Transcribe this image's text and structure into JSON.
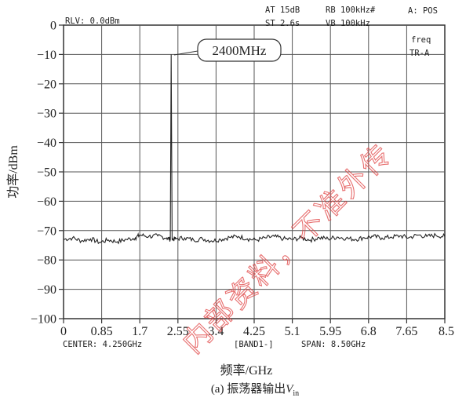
{
  "chart_data": {
    "type": "line",
    "ylabel": "功率/dBm",
    "xlabel": "频率/GHz",
    "caption_prefix": "(a) 振荡器输出",
    "caption_var": "V",
    "caption_sub": "in",
    "yticks": [
      "0",
      "−10",
      "−20",
      "−30",
      "−40",
      "−50",
      "−60",
      "−70",
      "−80",
      "−90",
      "−100"
    ],
    "xticks": [
      "0",
      "0.85",
      "1.7",
      "2.55",
      "3.4",
      "4.25",
      "5.1",
      "5.95",
      "6.8",
      "7.65",
      "8.5"
    ],
    "ylim": [
      -100,
      0
    ],
    "xlim": [
      0,
      8.5
    ],
    "grid": true,
    "peak_annotation": "2400MHz",
    "series": [
      {
        "x": [
          0,
          0.2,
          0.4,
          0.6,
          0.8,
          1.0,
          1.2,
          1.4,
          1.6,
          1.7,
          1.9,
          2.1,
          2.3,
          2.38,
          2.4,
          2.42,
          2.5,
          2.7,
          2.9,
          3.1,
          3.3,
          3.5,
          3.7,
          3.9,
          4.1,
          4.3,
          4.5,
          4.7,
          4.9,
          5.1,
          5.3,
          5.5,
          5.7,
          5.9,
          6.1,
          6.3,
          6.5,
          6.7,
          6.9,
          7.1,
          7.3,
          7.5,
          7.7,
          7.9,
          8.1,
          8.3,
          8.5
        ],
        "y": [
          -73,
          -72.5,
          -73.5,
          -72.8,
          -74,
          -73.2,
          -73.8,
          -73,
          -72.5,
          -71.5,
          -72,
          -71.8,
          -72.5,
          -73,
          -10,
          -73,
          -72.8,
          -72.5,
          -73.2,
          -72.8,
          -73.5,
          -73,
          -72.3,
          -72,
          -72.8,
          -73.2,
          -72.5,
          -72,
          -72.8,
          -73,
          -72.5,
          -73.2,
          -72.4,
          -72.8,
          -72.2,
          -72.6,
          -73,
          -72.4,
          -72,
          -72.5,
          -72.2,
          -71.8,
          -72.4,
          -71.5,
          -72,
          -71.6,
          -72
        ]
      }
    ]
  },
  "header": {
    "rlv": "RLV:    0.0dBm",
    "at": "AT  15dB",
    "rb": "RB  100kHz#",
    "mode": "A: POS",
    "st": "ST  2.6s",
    "vb": "VB  100kHz",
    "freq": "freq",
    "tr": "TR-A"
  },
  "footer": {
    "center": "CENTER: 4.250GHz",
    "band": "[BAND1-]",
    "span": "SPAN: 8.50GHz"
  },
  "watermark": "内部资料，不准外传"
}
